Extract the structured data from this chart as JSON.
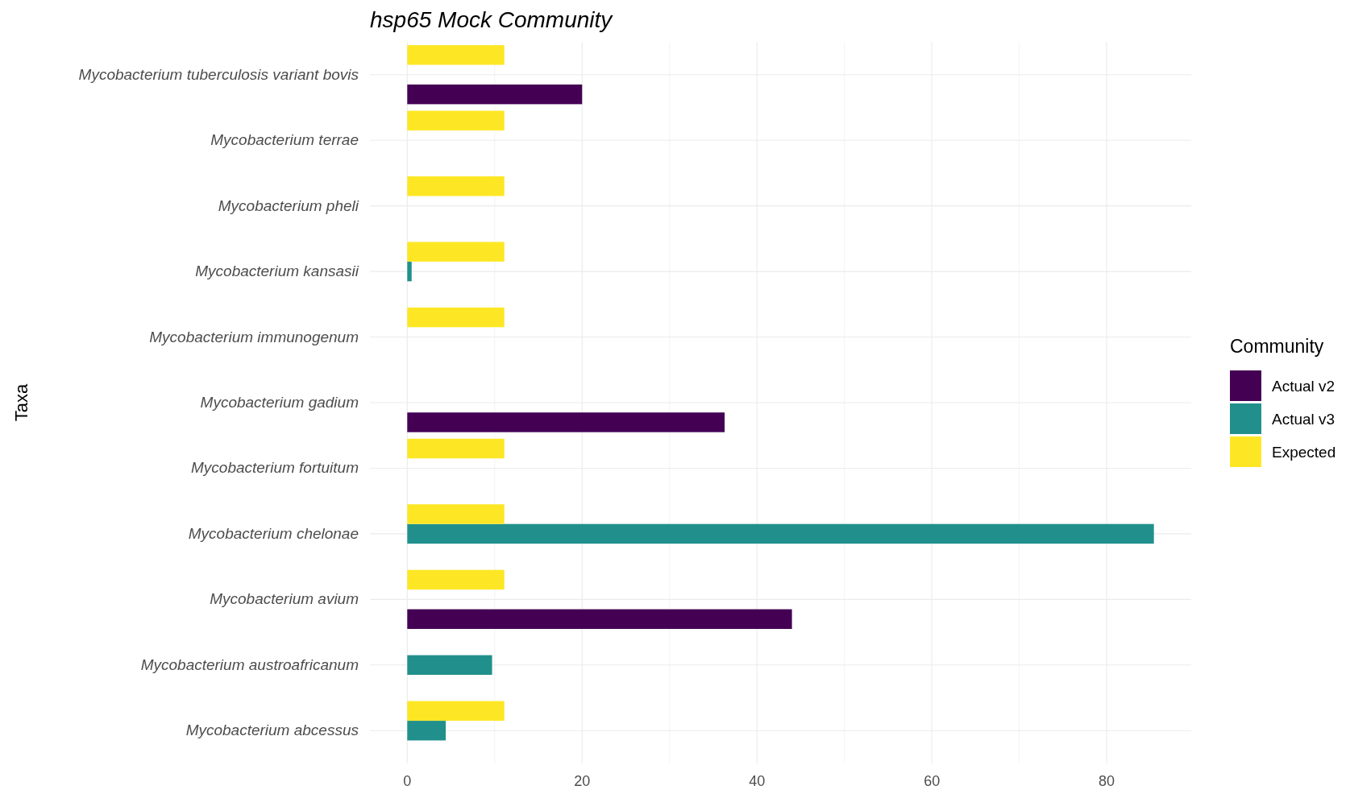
{
  "chart_data": {
    "type": "bar",
    "orientation": "horizontal",
    "title": "hsp65 Mock Community",
    "ylabel": "Taxa",
    "legend_title": "Community",
    "legend": "right",
    "grid": true,
    "categories": [
      "Mycobacterium tuberculosis variant bovis",
      "Mycobacterium terrae",
      "Mycobacterium pheli",
      "Mycobacterium kansasii",
      "Mycobacterium immunogenum",
      "Mycobacterium gadium",
      "Mycobacterium fortuitum",
      "Mycobacterium chelonae",
      "Mycobacterium avium",
      "Mycobacterium austroafricanum",
      "Mycobacterium abcessus"
    ],
    "series": [
      {
        "name": "Actual v2",
        "color": "#440154",
        "values": [
          20,
          null,
          null,
          null,
          null,
          36.3,
          null,
          null,
          44,
          null,
          null
        ]
      },
      {
        "name": "Actual v3",
        "color": "#21908c",
        "values": [
          null,
          null,
          null,
          0.5,
          null,
          null,
          null,
          85.4,
          null,
          9.7,
          4.4
        ]
      },
      {
        "name": "Expected",
        "color": "#fde725",
        "values": [
          11.1,
          11.1,
          11.1,
          11.1,
          11.1,
          null,
          11.1,
          11.1,
          11.1,
          null,
          11.1
        ]
      }
    ],
    "xlim": [
      -4.27,
      89.67
    ],
    "xticks": [
      0,
      {
        "value": 10,
        "label": null
      },
      20,
      {
        "value": 30,
        "label": null
      },
      40,
      {
        "value": 50,
        "label": null
      },
      60,
      {
        "value": 70,
        "label": null
      },
      80
    ]
  }
}
